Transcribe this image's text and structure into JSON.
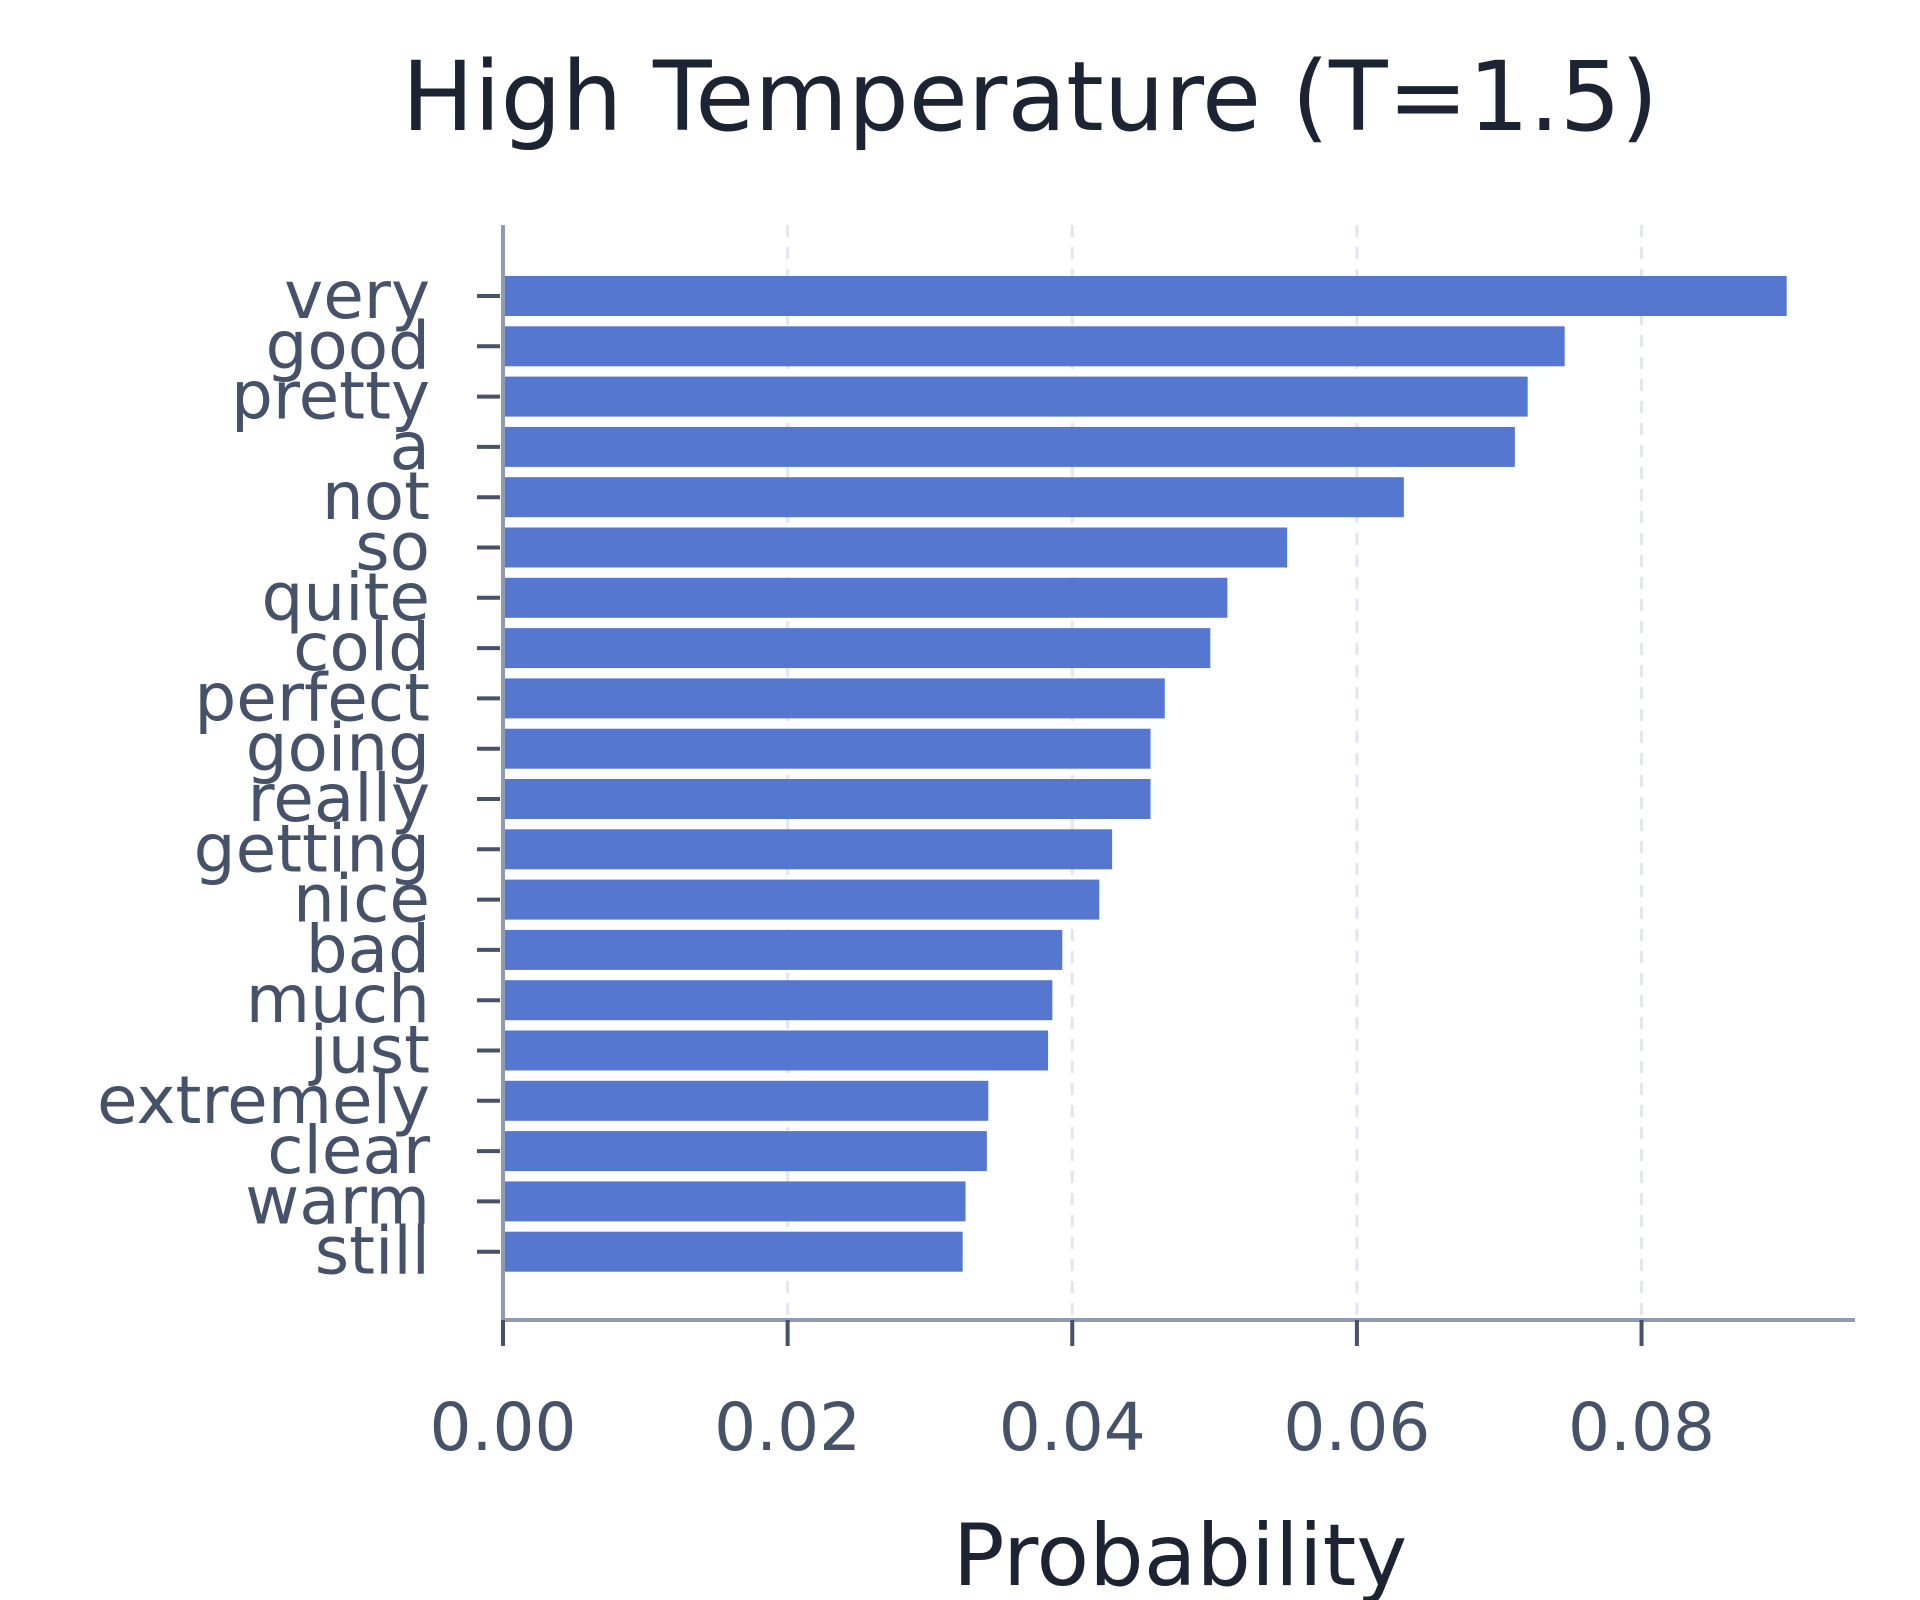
{
  "chart_data": {
    "type": "bar",
    "orientation": "horizontal",
    "title": "High Temperature (T=1.5)",
    "xlabel": "Probability",
    "ylabel": "",
    "xlim": [
      0,
      0.095
    ],
    "xticks": [
      0.0,
      0.02,
      0.04,
      0.06,
      0.08
    ],
    "xtick_labels": [
      "0.00",
      "0.02",
      "0.04",
      "0.06",
      "0.08"
    ],
    "grid": "vertical dashed",
    "bar_color": "#5577d0",
    "categories": [
      "very",
      "good",
      "pretty",
      "a",
      "not",
      "so",
      "quite",
      "cold",
      "perfect",
      "going",
      "really",
      "getting",
      "nice",
      "bad",
      "much",
      "just",
      "extremely",
      "clear",
      "warm",
      "still"
    ],
    "values": [
      0.0902,
      0.0746,
      0.072,
      0.0711,
      0.0633,
      0.0551,
      0.0509,
      0.0497,
      0.0465,
      0.0455,
      0.0455,
      0.0428,
      0.0419,
      0.0393,
      0.0386,
      0.0383,
      0.0341,
      0.034,
      0.0325,
      0.0323
    ]
  }
}
